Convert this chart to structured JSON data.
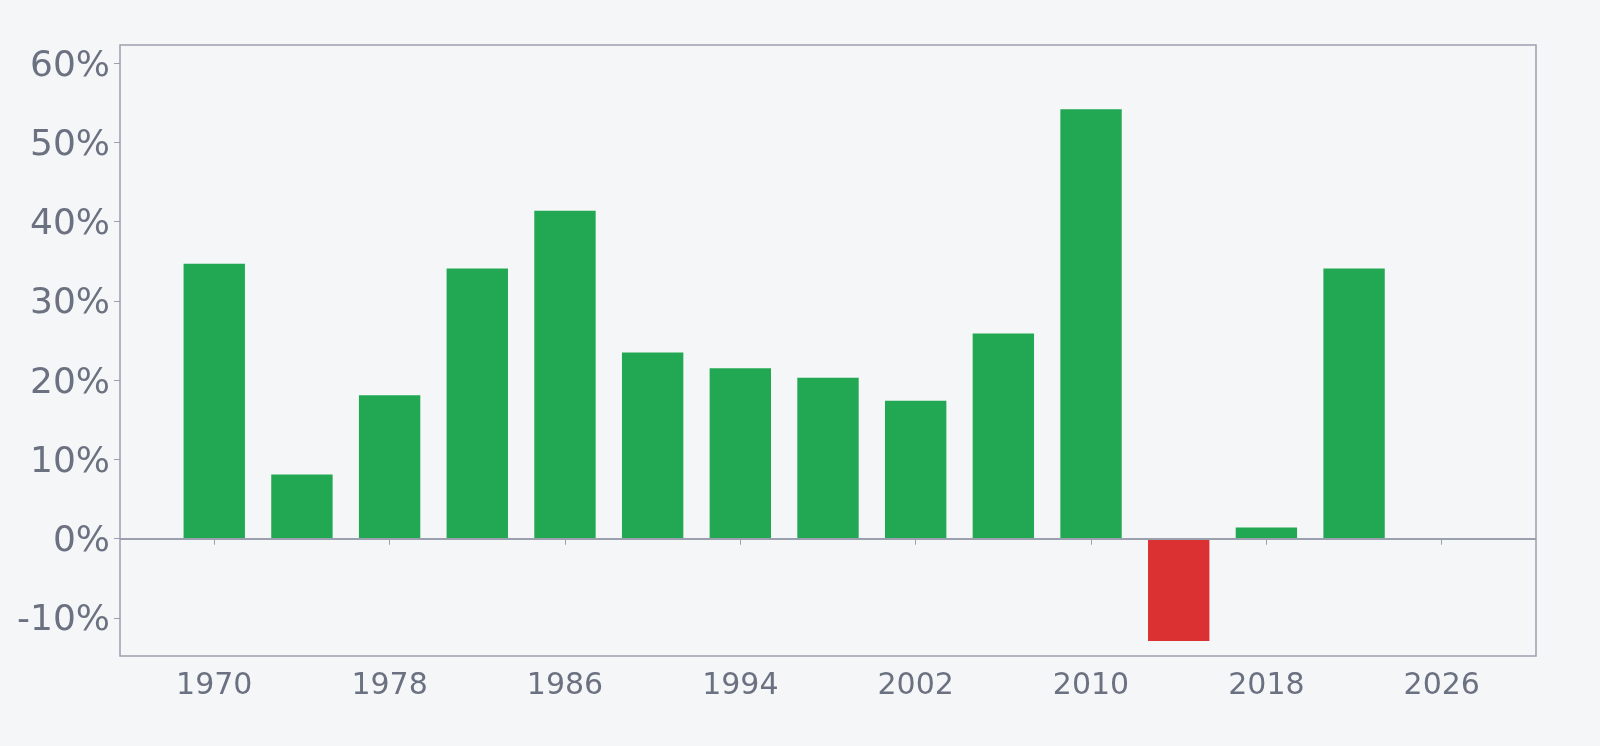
{
  "chart_data": {
    "type": "bar",
    "x": [
      1970,
      1974,
      1978,
      1982,
      1986,
      1990,
      1994,
      1998,
      2002,
      2006,
      2010,
      2014,
      2018,
      2022
    ],
    "values": [
      34.7,
      8.1,
      18.1,
      34.1,
      41.4,
      23.5,
      21.5,
      20.3,
      17.4,
      25.9,
      54.2,
      -12.9,
      1.4,
      34.1
    ],
    "colors": [
      "#22a852",
      "#22a852",
      "#22a852",
      "#22a852",
      "#22a852",
      "#22a852",
      "#22a852",
      "#22a852",
      "#22a852",
      "#22a852",
      "#22a852",
      "#dc3132",
      "#22a852",
      "#22a852"
    ],
    "xlim": [
      1965.7,
      2030.3
    ],
    "xticks": [
      1970,
      1978,
      1986,
      1994,
      2002,
      2010,
      2018,
      2026
    ],
    "ylim": [
      -14.8,
      62.3
    ],
    "yticks": [
      {
        "value": -10,
        "label": "-10%"
      },
      {
        "value": 0,
        "label": "0%"
      },
      {
        "value": 10,
        "label": "10%"
      },
      {
        "value": 20,
        "label": "20%"
      },
      {
        "value": 30,
        "label": "30%"
      },
      {
        "value": 40,
        "label": "40%"
      },
      {
        "value": 50,
        "label": "50%"
      },
      {
        "value": 60,
        "label": "60%"
      }
    ],
    "ref_lines": [
      {
        "axis": "y",
        "value": 0,
        "color": "#9aa0ad"
      }
    ],
    "grid": false
  }
}
